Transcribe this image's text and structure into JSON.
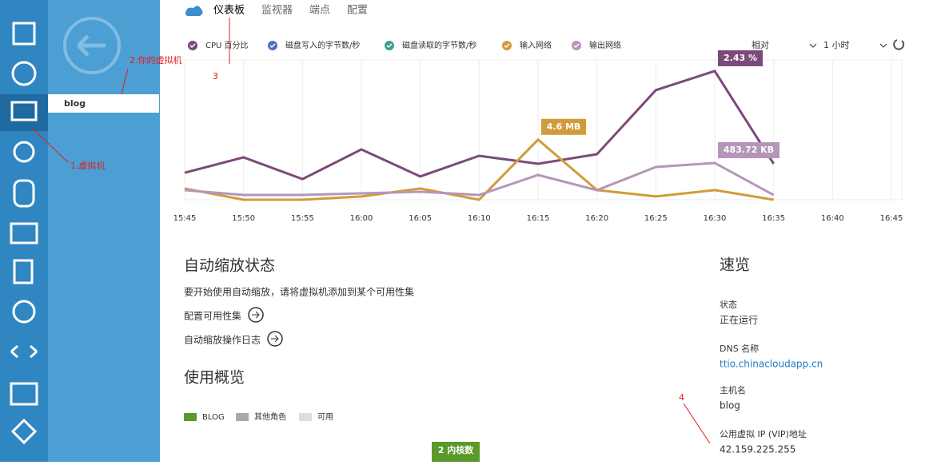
{
  "nav": {
    "tabs": [
      "仪表板",
      "监视器",
      "端点",
      "配置"
    ]
  },
  "sidebar": {
    "selected_item": "blog"
  },
  "annotations": [
    "1.虚拟机",
    "2.你的虚拟机",
    "3",
    "4"
  ],
  "chart_controls": {
    "range_mode": "相对",
    "period": "1 小时"
  },
  "chart_data": {
    "type": "line",
    "categories": [
      "15:45",
      "15:50",
      "15:55",
      "16:00",
      "16:05",
      "16:10",
      "16:15",
      "16:20",
      "16:25",
      "16:30",
      "16:35",
      "16:40",
      "16:45"
    ],
    "series": [
      {
        "name": "CPU 百分比",
        "color": "#7b4a7a",
        "ylim": [
          0,
          2.64
        ],
        "values": [
          0.51,
          0.8,
          0.39,
          0.95,
          0.44,
          0.83,
          0.68,
          0.86,
          2.07,
          2.43,
          0.68,
          null,
          null
        ],
        "value_labels": [
          null,
          null,
          null,
          null,
          null,
          null,
          null,
          null,
          null,
          "2.43 %",
          null,
          null,
          null
        ]
      },
      {
        "name": "磁盘写入的字节数/秒",
        "color": "#4a6fc0"
      },
      {
        "name": "磁盘读取的字节数/秒",
        "color": "#3aa08a"
      },
      {
        "name": "输入网络",
        "color": "#d09c3a",
        "ylim": [
          0,
          10.7
        ],
        "values": [
          0.86,
          0,
          0,
          0.25,
          0.86,
          0,
          4.6,
          0.74,
          0.25,
          0.74,
          0,
          null,
          null
        ],
        "value_labels": [
          null,
          null,
          null,
          null,
          null,
          null,
          "4.6 MB",
          null,
          null,
          null,
          null,
          null,
          null
        ]
      },
      {
        "name": "输出网络",
        "color": "#b596b8",
        "ylim": [
          0,
          1840
        ],
        "values": [
          126,
          63,
          63,
          84,
          105,
          63,
          326,
          126,
          431,
          483.72,
          63,
          null,
          null
        ],
        "value_labels": [
          null,
          null,
          null,
          null,
          null,
          null,
          null,
          null,
          null,
          "483.72 KB",
          null,
          null,
          null
        ]
      }
    ]
  },
  "autoscale": {
    "title": "自动缩放状态",
    "text": "要开始使用自动缩放，请将虚拟机添加到某个可用性集",
    "links": [
      "配置可用性集",
      "自动缩放操作日志"
    ]
  },
  "usage": {
    "title": "使用概览",
    "legend": [
      {
        "name": "BLOG",
        "color": "#5a9a2a"
      },
      {
        "name": "其他角色",
        "color": "#aaaaaa"
      },
      {
        "name": "可用",
        "color": "#dddddd"
      }
    ],
    "badge": "2 内核数"
  },
  "quick_glance": {
    "title": "速览",
    "items": [
      {
        "label": "状态",
        "value": "正在运行"
      },
      {
        "label": "DNS 名称",
        "value": "ttio.chinacloudapp.cn"
      },
      {
        "label": "主机名",
        "value": "blog"
      },
      {
        "label": "公用虚拟 IP (VIP)地址",
        "value": "42.159.225.255"
      }
    ]
  }
}
